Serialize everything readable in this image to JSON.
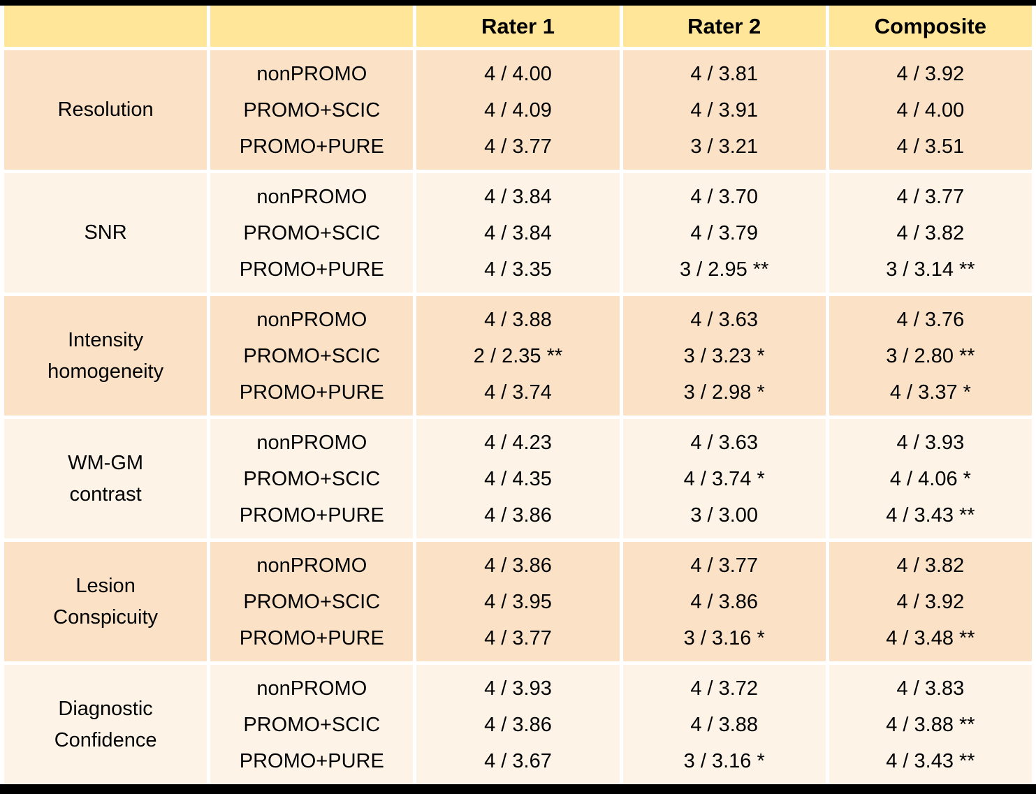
{
  "table": {
    "column_headers": [
      "",
      "",
      "Rater 1",
      "Rater 2",
      "Composite"
    ],
    "groups": [
      {
        "measure": "Resolution",
        "measure_lines": [
          "Resolution"
        ],
        "sequences": [
          "nonPROMO",
          "PROMO+SCIC",
          "PROMO+PURE"
        ],
        "rater1": [
          "4 / 4.00",
          "4 / 4.09",
          "4 / 3.77"
        ],
        "rater2": [
          "4 / 3.81",
          "4 / 3.91",
          "3 / 3.21"
        ],
        "composite": [
          "4 / 3.92",
          "4 / 4.00",
          "4 / 3.51"
        ]
      },
      {
        "measure": "SNR",
        "measure_lines": [
          "SNR"
        ],
        "sequences": [
          "nonPROMO",
          "PROMO+SCIC",
          "PROMO+PURE"
        ],
        "rater1": [
          "4 / 3.84",
          "4 / 3.84",
          "4 / 3.35"
        ],
        "rater2": [
          "4 / 3.70",
          "4 / 3.79",
          "3 / 2.95 **"
        ],
        "composite": [
          "4 / 3.77",
          "4 / 3.82",
          "3 / 3.14 **"
        ]
      },
      {
        "measure": "Intensity homogeneity",
        "measure_lines": [
          "Intensity",
          "homogeneity"
        ],
        "sequences": [
          "nonPROMO",
          "PROMO+SCIC",
          "PROMO+PURE"
        ],
        "rater1": [
          "4 / 3.88",
          "2 / 2.35 **",
          "4 / 3.74"
        ],
        "rater2": [
          "4 / 3.63",
          "3 / 3.23 *",
          "3 / 2.98 *"
        ],
        "composite": [
          "4 / 3.76",
          "3 / 2.80 **",
          "4 / 3.37 *"
        ]
      },
      {
        "measure": "WM-GM contrast",
        "measure_lines": [
          "WM-GM",
          "contrast"
        ],
        "sequences": [
          "nonPROMO",
          "PROMO+SCIC",
          "PROMO+PURE"
        ],
        "rater1": [
          "4 / 4.23",
          "4 / 4.35",
          "4 / 3.86"
        ],
        "rater2": [
          "4 / 3.63",
          "4 / 3.74 *",
          "3 / 3.00"
        ],
        "composite": [
          "4 / 3.93",
          "4 / 4.06 *",
          "4 / 3.43 **"
        ]
      },
      {
        "measure": "Lesion Conspicuity",
        "measure_lines": [
          "Lesion",
          "Conspicuity"
        ],
        "sequences": [
          "nonPROMO",
          "PROMO+SCIC",
          "PROMO+PURE"
        ],
        "rater1": [
          "4 / 3.86",
          "4 / 3.95",
          "4 / 3.77"
        ],
        "rater2": [
          "4 / 3.77",
          "4 / 3.86",
          "3 / 3.16 *"
        ],
        "composite": [
          "4 / 3.82",
          "4 / 3.92",
          "4 / 3.48 **"
        ]
      },
      {
        "measure": "Diagnostic Confidence",
        "measure_lines": [
          "Diagnostic",
          "Confidence"
        ],
        "sequences": [
          "nonPROMO",
          "PROMO+SCIC",
          "PROMO+PURE"
        ],
        "rater1": [
          "4 / 3.93",
          "4 / 3.86",
          "4 / 3.67"
        ],
        "rater2": [
          "4 / 3.72",
          "4 / 3.88",
          "3 / 3.16 *"
        ],
        "composite": [
          "4 / 3.83",
          "4 / 3.88 **",
          "4 / 3.43 **"
        ]
      }
    ]
  },
  "colors": {
    "header_bg": "#FFE699",
    "row_group_dark_bg": "#FBE2C7",
    "row_group_light_bg": "#FDF3E7",
    "frame_bar": "#000000",
    "text": "#000000",
    "cell_gap": "#FFFFFF"
  }
}
